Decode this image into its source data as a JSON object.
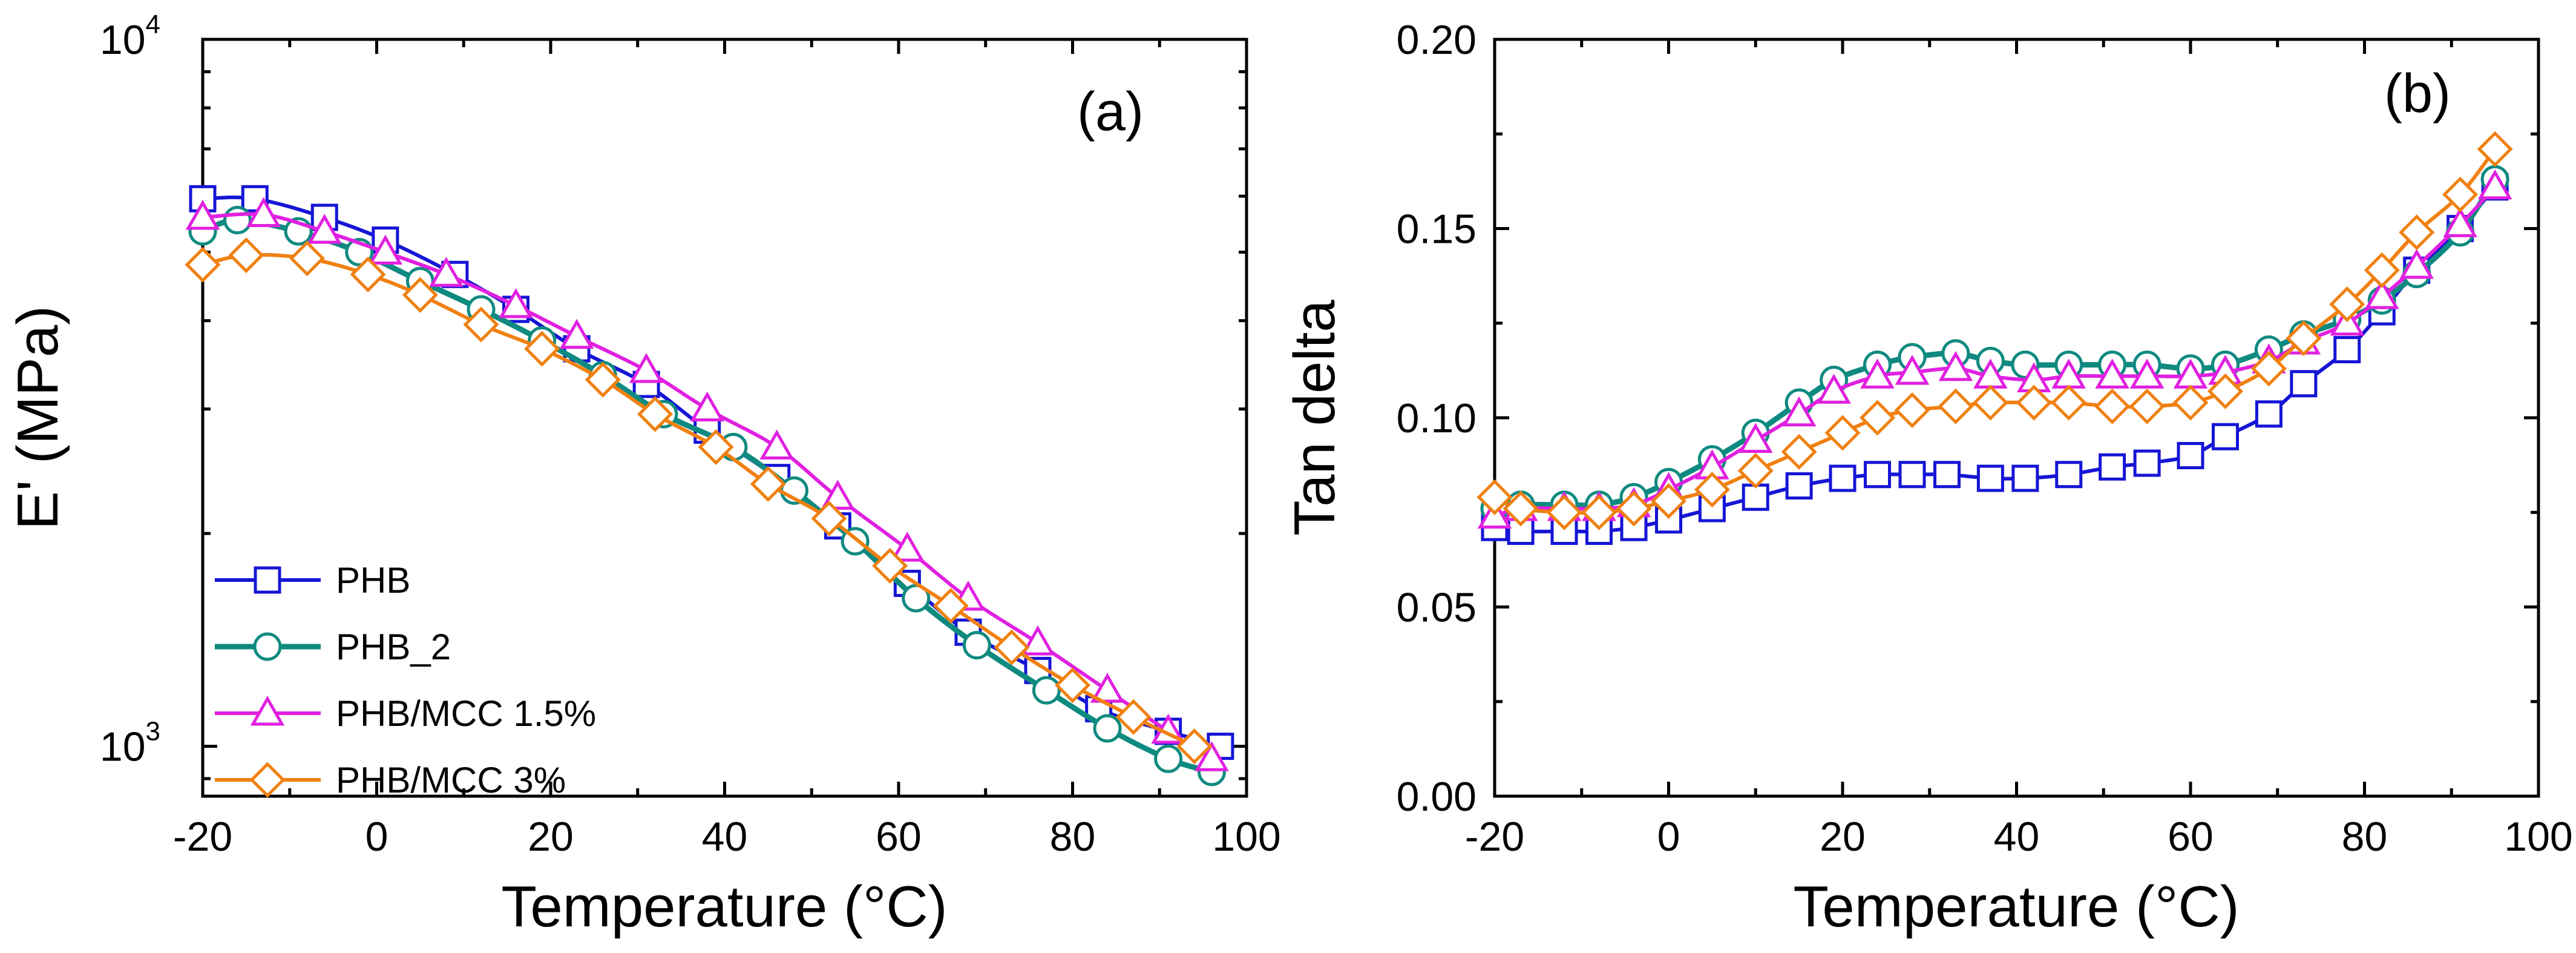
{
  "chart_data": [
    {
      "type": "line",
      "panel_label": "(a)",
      "xlabel": "Temperature (°C)",
      "ylabel": "E' (MPa)",
      "xlim": [
        -20,
        100
      ],
      "ylim": [
        850,
        10000
      ],
      "yscale": "log",
      "x_ticks": [
        "-20",
        "0",
        "20",
        "40",
        "60",
        "80",
        "100"
      ],
      "y_ticks": [
        {
          "value": 1000,
          "base": "10",
          "exp": "3"
        },
        {
          "value": 10000,
          "base": "10",
          "exp": "4"
        }
      ],
      "legend_position": "bottom-left",
      "series": [
        {
          "name": "PHB",
          "color": "#1515d6",
          "marker": "square",
          "x": [
            -20,
            -14,
            -6,
            1,
            9,
            16,
            23,
            31,
            38,
            46,
            53,
            61,
            68,
            76,
            83,
            91,
            97
          ],
          "y": [
            5950,
            5950,
            5600,
            5200,
            4650,
            4150,
            3650,
            3250,
            2800,
            2400,
            2050,
            1700,
            1450,
            1280,
            1130,
            1050,
            1000
          ]
        },
        {
          "name": "PHB_2",
          "color": "#0f8a80",
          "marker": "circle",
          "x": [
            -20,
            -16,
            -9,
            -2,
            5,
            12,
            19,
            26,
            33,
            41,
            48,
            55,
            62,
            69,
            77,
            84,
            91,
            96
          ],
          "y": [
            5350,
            5550,
            5350,
            5000,
            4550,
            4150,
            3750,
            3350,
            2950,
            2650,
            2300,
            1950,
            1620,
            1390,
            1200,
            1060,
            960,
            920
          ]
        },
        {
          "name": "PHB/MCC 1.5%",
          "color": "#e020e0",
          "marker": "triangle",
          "x": [
            -20,
            -13,
            -6,
            1,
            8,
            16,
            23,
            31,
            38,
            46,
            53,
            61,
            68,
            76,
            84,
            91,
            96
          ],
          "y": [
            5600,
            5650,
            5350,
            5000,
            4650,
            4200,
            3800,
            3400,
            3000,
            2650,
            2250,
            1900,
            1620,
            1400,
            1200,
            1050,
            960
          ]
        },
        {
          "name": "PHB/MCC 3%",
          "color": "#f08010",
          "marker": "diamond",
          "x": [
            -20,
            -15,
            -8,
            -1,
            5,
            12,
            19,
            26,
            32,
            39,
            45,
            52,
            59,
            66,
            73,
            80,
            87,
            94
          ],
          "y": [
            4800,
            4950,
            4900,
            4650,
            4350,
            3950,
            3650,
            3300,
            2950,
            2650,
            2350,
            2100,
            1800,
            1580,
            1380,
            1220,
            1100,
            1000
          ]
        }
      ],
      "legend": [
        "PHB",
        "PHB_2",
        "PHB/MCC 1.5%",
        "PHB/MCC 3%"
      ]
    },
    {
      "type": "line",
      "panel_label": "(b)",
      "xlabel": "Temperature (°C)",
      "ylabel": "Tan delta",
      "xlim": [
        -20,
        100
      ],
      "ylim": [
        0,
        0.2
      ],
      "yscale": "linear",
      "x_ticks": [
        "-20",
        "0",
        "20",
        "40",
        "60",
        "80",
        "100"
      ],
      "y_ticks": [
        "0.00",
        "0.05",
        "0.10",
        "0.15",
        "0.20"
      ],
      "series": [
        {
          "name": "PHB",
          "color": "#1515d6",
          "marker": "square",
          "x": [
            -20,
            -17,
            -12,
            -8,
            -4,
            0,
            5,
            10,
            15,
            20,
            24,
            28,
            32,
            37,
            41,
            46,
            51,
            55,
            60,
            64,
            69,
            73,
            78,
            82,
            86,
            91,
            95
          ],
          "y": [
            0.071,
            0.07,
            0.07,
            0.07,
            0.071,
            0.073,
            0.076,
            0.079,
            0.082,
            0.084,
            0.085,
            0.085,
            0.085,
            0.084,
            0.084,
            0.085,
            0.087,
            0.088,
            0.09,
            0.095,
            0.101,
            0.109,
            0.118,
            0.128,
            0.139,
            0.15,
            0.161
          ]
        },
        {
          "name": "PHB_2",
          "color": "#0f8a80",
          "marker": "circle",
          "x": [
            -20,
            -17,
            -12,
            -8,
            -4,
            0,
            5,
            10,
            15,
            19,
            24,
            28,
            33,
            37,
            41,
            46,
            51,
            55,
            60,
            64,
            69,
            73,
            78,
            82,
            86,
            91,
            95
          ],
          "y": [
            0.076,
            0.077,
            0.077,
            0.077,
            0.079,
            0.083,
            0.089,
            0.096,
            0.104,
            0.11,
            0.114,
            0.116,
            0.117,
            0.115,
            0.114,
            0.114,
            0.114,
            0.114,
            0.113,
            0.114,
            0.118,
            0.122,
            0.126,
            0.131,
            0.138,
            0.149,
            0.163
          ]
        },
        {
          "name": "PHB/MCC 1.5%",
          "color": "#e020e0",
          "marker": "triangle",
          "x": [
            -20,
            -17,
            -12,
            -8,
            -4,
            0,
            5,
            10,
            15,
            19,
            24,
            28,
            33,
            37,
            42,
            46,
            51,
            55,
            60,
            64,
            69,
            73,
            78,
            82,
            86,
            91,
            95
          ],
          "y": [
            0.074,
            0.076,
            0.076,
            0.076,
            0.077,
            0.081,
            0.087,
            0.094,
            0.101,
            0.107,
            0.111,
            0.112,
            0.113,
            0.111,
            0.11,
            0.111,
            0.111,
            0.111,
            0.111,
            0.112,
            0.115,
            0.12,
            0.125,
            0.132,
            0.14,
            0.151,
            0.161
          ]
        },
        {
          "name": "PHB/MCC 3%",
          "color": "#f08010",
          "marker": "diamond",
          "x": [
            -20,
            -17,
            -12,
            -8,
            -4,
            0,
            5,
            10,
            15,
            20,
            24,
            28,
            33,
            37,
            42,
            46,
            51,
            55,
            60,
            64,
            69,
            73,
            78,
            82,
            86,
            91,
            95
          ],
          "y": [
            0.079,
            0.076,
            0.075,
            0.075,
            0.076,
            0.078,
            0.081,
            0.086,
            0.091,
            0.096,
            0.1,
            0.102,
            0.103,
            0.104,
            0.104,
            0.104,
            0.103,
            0.103,
            0.104,
            0.107,
            0.113,
            0.121,
            0.13,
            0.139,
            0.149,
            0.159,
            0.171
          ]
        }
      ]
    }
  ]
}
